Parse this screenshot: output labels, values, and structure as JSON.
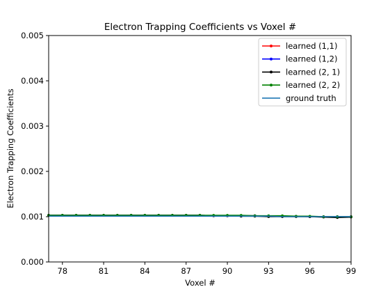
{
  "chart_data": {
    "type": "line",
    "title": "Electron Trapping Coefficients vs Voxel #",
    "xlabel": "Voxel #",
    "ylabel": "Electron Trapping Coefficients",
    "xlim": [
      77,
      99
    ],
    "ylim": [
      0,
      0.005
    ],
    "x_ticks": [
      "78",
      "81",
      "84",
      "87",
      "90",
      "93",
      "96",
      "99"
    ],
    "y_ticks": [
      "0.000",
      "0.001",
      "0.002",
      "0.003",
      "0.004",
      "0.005"
    ],
    "legend_position": "top-right",
    "x": [
      77,
      78,
      79,
      80,
      81,
      82,
      83,
      84,
      85,
      86,
      87,
      88,
      89,
      90,
      91,
      92,
      93,
      94,
      95,
      96,
      97,
      98,
      99
    ],
    "series": [
      {
        "name": "learned (1,1)",
        "color": "#ff0000",
        "marker": "dot",
        "values": [
          0.00103,
          0.00103,
          0.00103,
          0.00103,
          0.00103,
          0.00103,
          0.00103,
          0.00103,
          0.00103,
          0.00103,
          0.00103,
          0.00103,
          0.00102,
          0.00102,
          0.00102,
          0.00102,
          0.00101,
          0.00101,
          0.00101,
          0.001,
          0.001,
          0.001,
          0.001
        ]
      },
      {
        "name": "learned (1,2)",
        "color": "#0000ff",
        "marker": "dot",
        "values": [
          0.00103,
          0.00103,
          0.00103,
          0.00103,
          0.00103,
          0.00103,
          0.00103,
          0.00103,
          0.00103,
          0.00103,
          0.00103,
          0.00103,
          0.00102,
          0.00102,
          0.00102,
          0.00102,
          0.00101,
          0.00101,
          0.00101,
          0.001,
          0.001,
          0.001,
          0.001
        ]
      },
      {
        "name": "learned (2, 1)",
        "color": "#000000",
        "marker": "dot",
        "values": [
          0.00103,
          0.00103,
          0.00103,
          0.00103,
          0.00103,
          0.00103,
          0.00103,
          0.00103,
          0.00103,
          0.00103,
          0.00103,
          0.00103,
          0.00102,
          0.00102,
          0.00101,
          0.00101,
          0.001,
          0.001,
          0.001,
          0.001,
          0.00099,
          0.00098,
          0.00099
        ]
      },
      {
        "name": "learned (2, 2)",
        "color": "#008000",
        "marker": "dot",
        "values": [
          0.00103,
          0.00103,
          0.00103,
          0.00103,
          0.00103,
          0.00103,
          0.00103,
          0.00103,
          0.00103,
          0.00103,
          0.00103,
          0.00103,
          0.00103,
          0.00103,
          0.00103,
          0.00102,
          0.00102,
          0.00102,
          0.00101,
          0.00101,
          0.001,
          0.001,
          0.001
        ]
      },
      {
        "name": "ground truth",
        "color": "#1f77b4",
        "marker": "none",
        "values": [
          0.00101,
          0.00101,
          0.00101,
          0.00101,
          0.00101,
          0.00101,
          0.00101,
          0.00101,
          0.00101,
          0.00101,
          0.00101,
          0.00101,
          0.00101,
          0.00101,
          0.00101,
          0.00101,
          0.00101,
          0.001,
          0.001,
          0.001,
          0.001,
          0.001,
          0.001
        ]
      }
    ]
  }
}
